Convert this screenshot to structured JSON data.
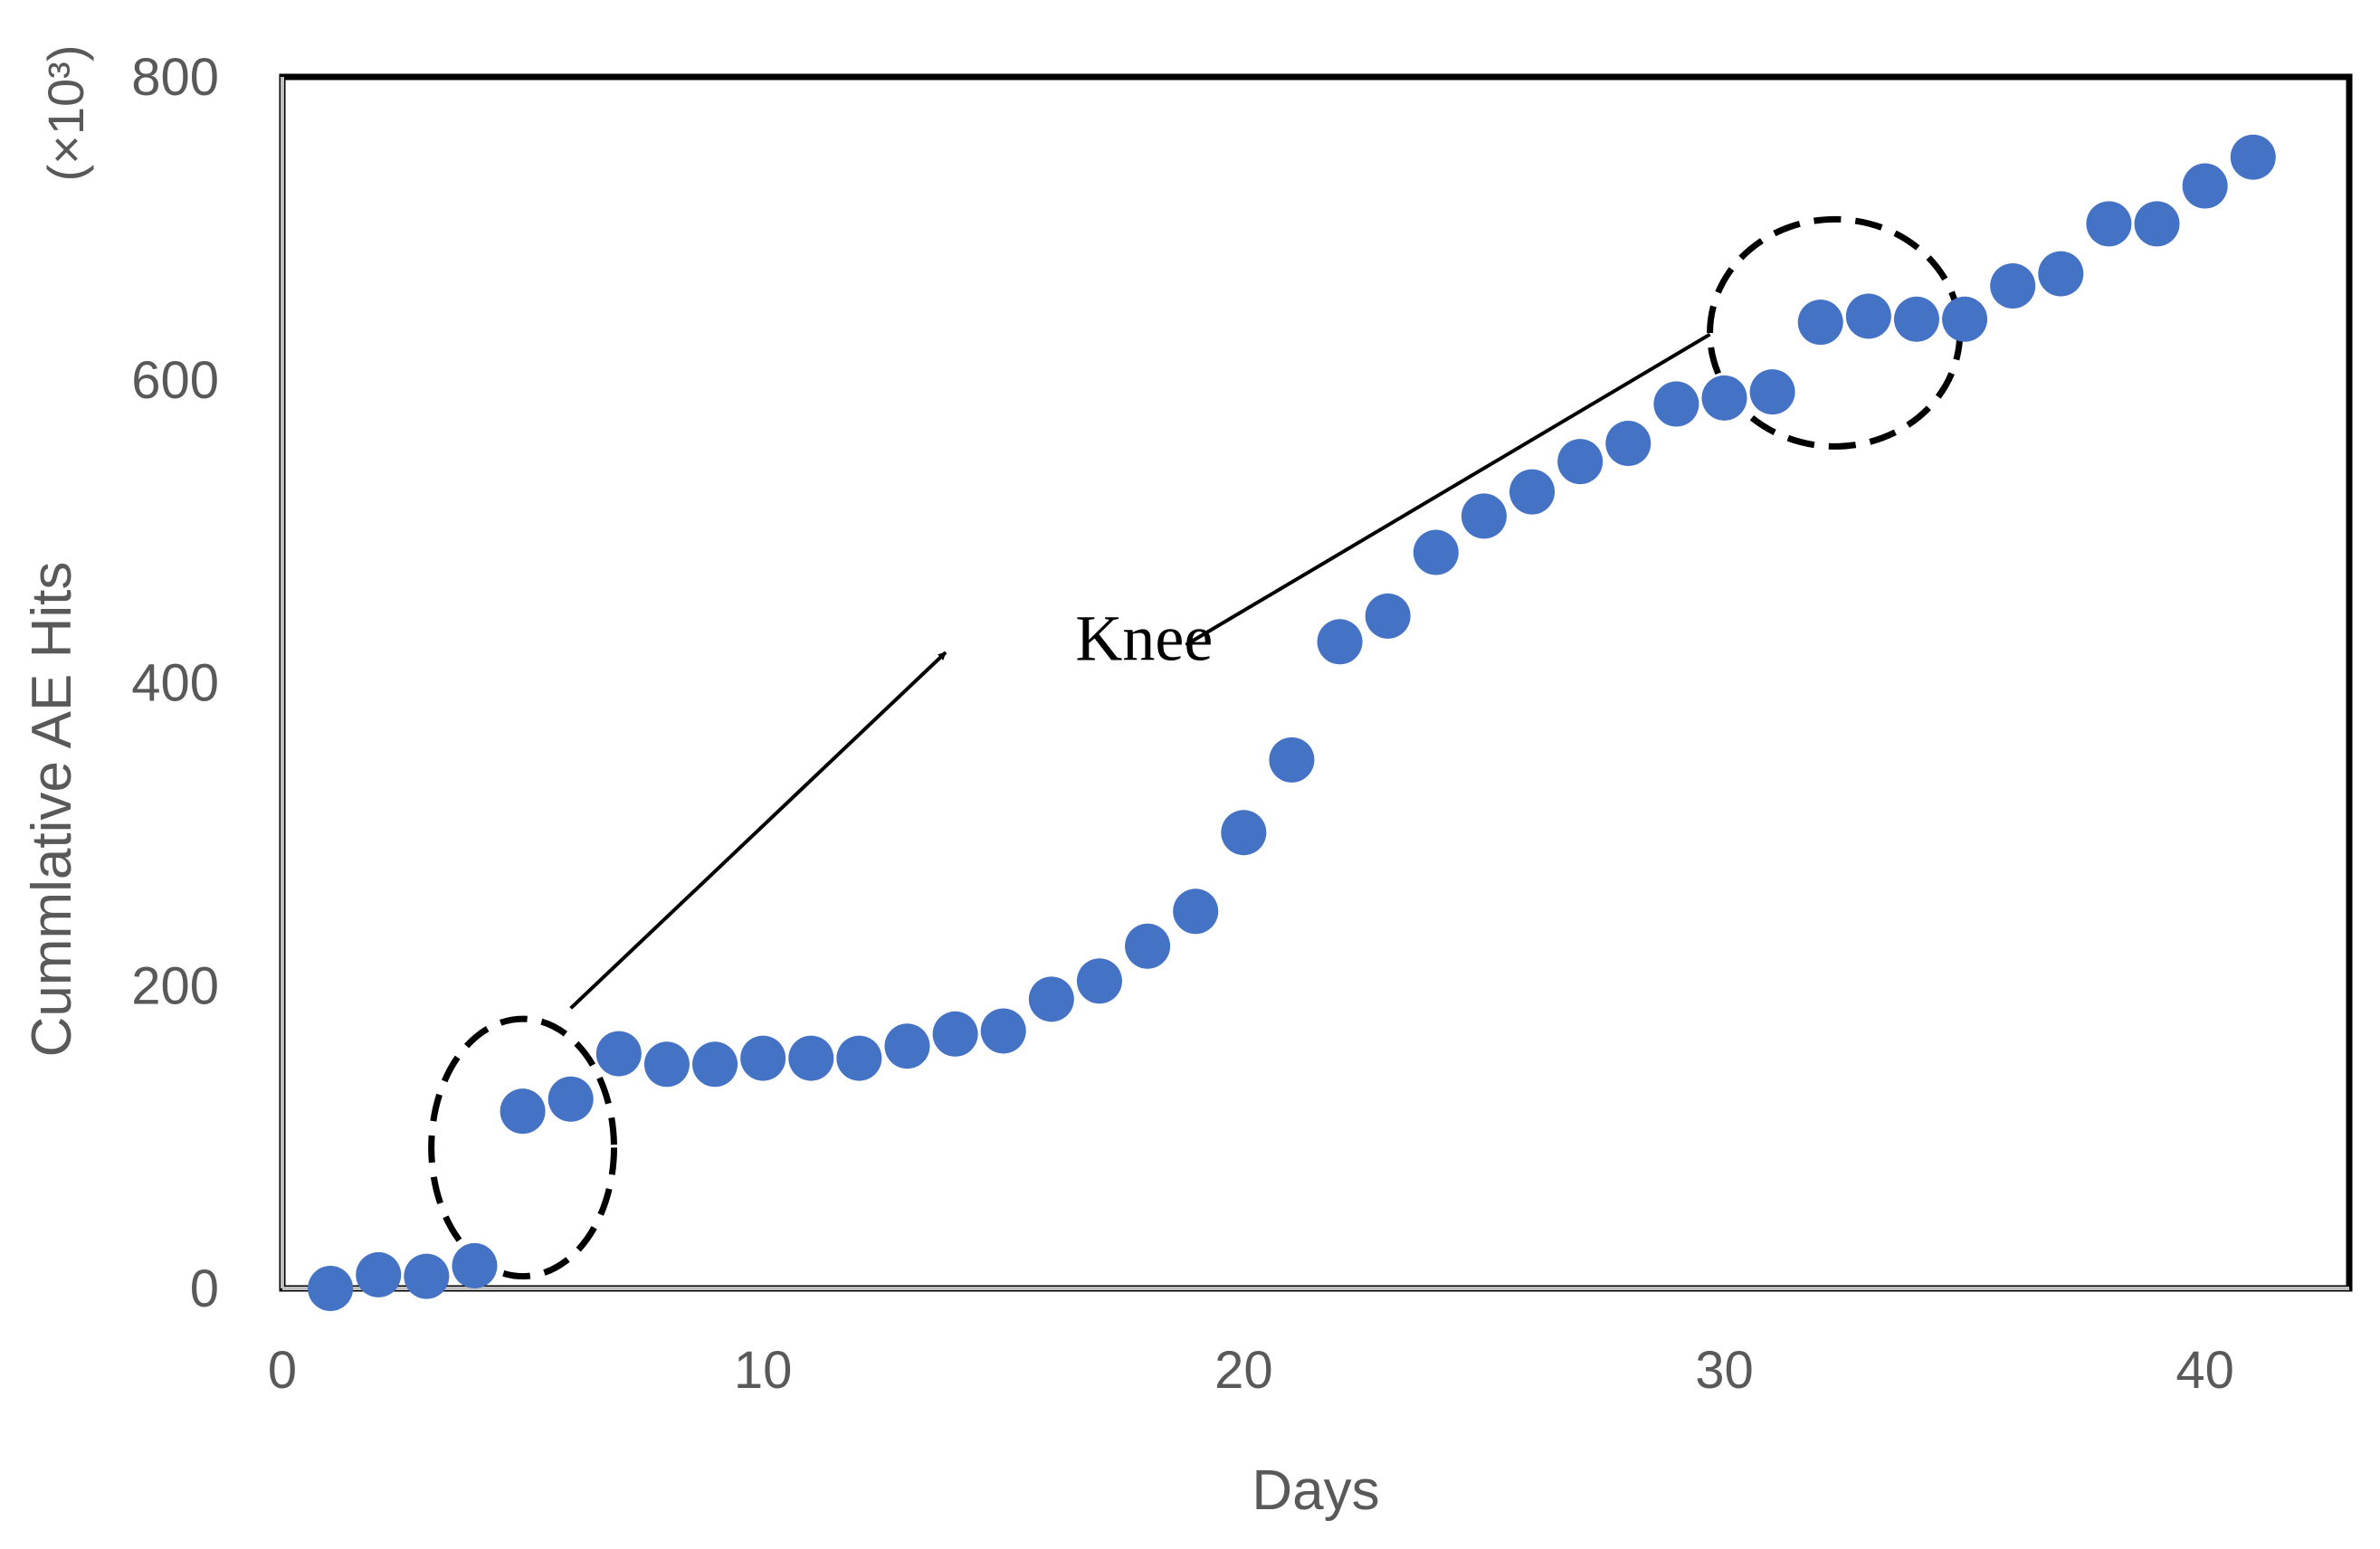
{
  "chart_data": {
    "type": "scatter",
    "title": "",
    "xlabel": "Days",
    "ylabel": "Cummlative AE Hits",
    "y_unit": "(×10³)",
    "xlim": [
      0,
      43
    ],
    "ylim": [
      0,
      800
    ],
    "x_ticks": [
      0,
      10,
      20,
      30,
      40
    ],
    "y_ticks": [
      0,
      200,
      400,
      600,
      800
    ],
    "grid": false,
    "marker_color": "#4472C4",
    "series": [
      {
        "x": [
          1,
          2,
          3,
          4,
          5,
          6,
          7,
          8,
          9,
          10,
          11,
          12,
          13,
          14,
          15,
          16,
          17,
          18,
          19,
          20,
          21,
          22,
          23,
          24,
          25,
          26,
          27,
          28,
          29,
          30,
          31,
          32,
          33,
          34,
          35,
          36,
          37,
          38,
          39,
          40,
          41
        ],
        "y": [
          0,
          9,
          8,
          15,
          117,
          125,
          155,
          148,
          148,
          152,
          152,
          152,
          160,
          168,
          170,
          191,
          203,
          226,
          249,
          301,
          349,
          427,
          444,
          486,
          510,
          526,
          546,
          558,
          584,
          588,
          592,
          638,
          642,
          640,
          640,
          662,
          670,
          703,
          703,
          728,
          747
        ]
      }
    ],
    "annotations": [
      {
        "text": "Knee",
        "text_at": [
          16.5,
          415
        ],
        "arrows": [
          {
            "from": [
              6,
              185
            ],
            "to": [
              13.8,
              420
            ]
          },
          {
            "from": [
              29.7,
              630
            ],
            "to": [
              18.8,
              425
            ]
          }
        ],
        "ellipses": [
          {
            "center": [
              5,
              93
            ],
            "rx": 1.9,
            "ry": 85
          },
          {
            "center": [
              32.3,
              631
            ],
            "rx": 2.6,
            "ry": 75
          }
        ]
      }
    ]
  }
}
